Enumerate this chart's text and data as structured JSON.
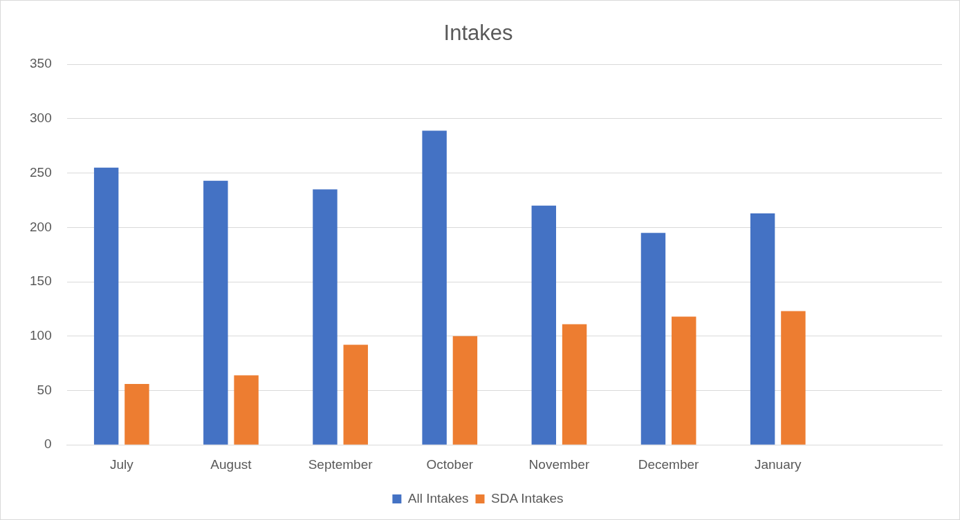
{
  "chart_data": {
    "type": "bar",
    "title": "Intakes",
    "categories": [
      "July",
      "August",
      "September",
      "October",
      "November",
      "December",
      "January",
      null
    ],
    "series": [
      {
        "name": "All Intakes",
        "color": "#4472c4",
        "values": [
          255,
          243,
          235,
          289,
          220,
          195,
          213,
          null
        ]
      },
      {
        "name": "SDA Intakes",
        "color": "#ed7d31",
        "values": [
          56,
          64,
          92,
          100,
          111,
          118,
          123,
          null
        ]
      }
    ],
    "ylim": [
      0,
      350
    ],
    "yticks": [
      0,
      50,
      100,
      150,
      200,
      250,
      300,
      350
    ],
    "grid": "y",
    "legend": "bottom"
  }
}
